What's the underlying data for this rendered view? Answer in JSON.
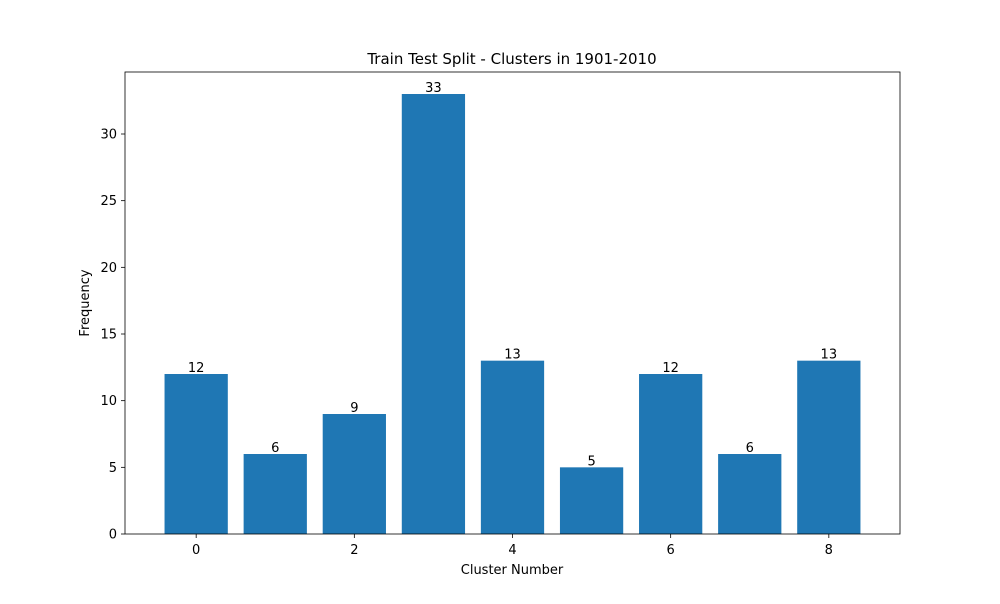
{
  "chart_data": {
    "type": "bar",
    "title": "Train Test Split - Clusters in 1901-2010",
    "xlabel": "Cluster Number",
    "ylabel": "Frequency",
    "categories": [
      0,
      1,
      2,
      3,
      4,
      5,
      6,
      7,
      8
    ],
    "values": [
      12,
      6,
      9,
      33,
      13,
      5,
      12,
      6,
      13
    ],
    "data_labels": [
      "12",
      "6",
      "9",
      "33",
      "13",
      "5",
      "12",
      "6",
      "13"
    ],
    "xlim": [
      -0.9,
      8.9
    ],
    "ylim": [
      0,
      34.65
    ],
    "xticks": [
      0,
      2,
      4,
      6,
      8
    ],
    "xtick_labels": [
      "0",
      "2",
      "4",
      "6",
      "8"
    ],
    "yticks": [
      0,
      5,
      10,
      15,
      20,
      25,
      30
    ],
    "ytick_labels": [
      "0",
      "5",
      "10",
      "15",
      "20",
      "25",
      "30"
    ],
    "grid": false,
    "bar_color": "#1f77b4"
  }
}
